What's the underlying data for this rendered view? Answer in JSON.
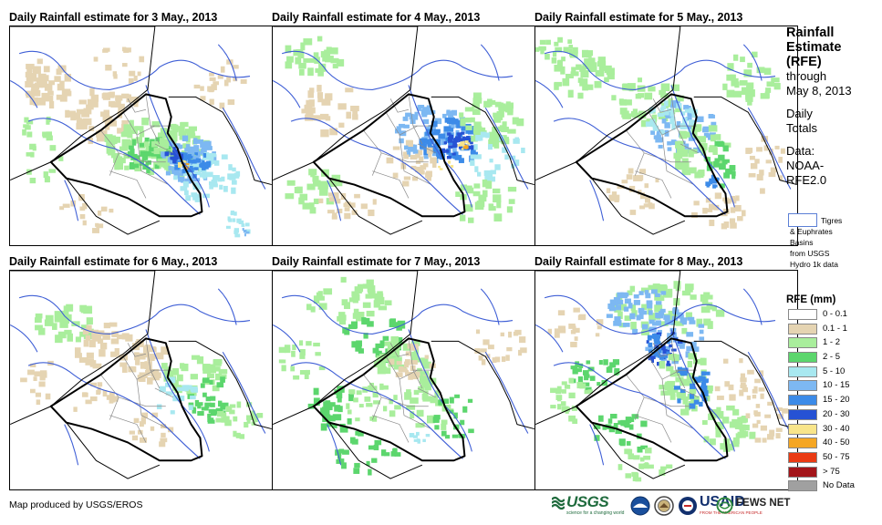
{
  "panels": [
    {
      "title": "Daily Rainfall estimate for 3 May., 2013",
      "pattern": "p3"
    },
    {
      "title": "Daily Rainfall estimate for 4 May., 2013",
      "pattern": "p4"
    },
    {
      "title": "Daily Rainfall estimate for 5 May., 2013",
      "pattern": "p5"
    },
    {
      "title": "Daily Rainfall estimate for 6 May., 2013",
      "pattern": "p6"
    },
    {
      "title": "Daily Rainfall estimate for 7 May., 2013",
      "pattern": "p7"
    },
    {
      "title": "Daily Rainfall estimate for 8 May., 2013",
      "pattern": "p8"
    }
  ],
  "side": {
    "line1": "Rainfall",
    "line2": "Estimate",
    "line3": "(RFE)",
    "line4": "through",
    "line5": "May 8, 2013",
    "line6": "Daily",
    "line7": "Totals",
    "line8": "Data:",
    "line9": "NOAA-",
    "line10": "RFE2.0"
  },
  "basin": {
    "line1": "Tigres",
    "line2": "& Euphrates",
    "line3": "Basins",
    "line4": "from USGS",
    "line5": "Hydro 1k data"
  },
  "legend": {
    "title": "RFE (mm)",
    "items": [
      {
        "label": "0 - 0.1",
        "color": "#ffffff"
      },
      {
        "label": "0.1 - 1",
        "color": "#e5d4b2"
      },
      {
        "label": "1 - 2",
        "color": "#a9ee9c"
      },
      {
        "label": "2 - 5",
        "color": "#5cd66d"
      },
      {
        "label": "5 - 10",
        "color": "#a8e8f0"
      },
      {
        "label": "10 - 15",
        "color": "#7db8f2"
      },
      {
        "label": "15 - 20",
        "color": "#3c8be8"
      },
      {
        "label": "20 - 30",
        "color": "#2652d4"
      },
      {
        "label": "30 - 40",
        "color": "#f8e58a"
      },
      {
        "label": "40 - 50",
        "color": "#f5a623"
      },
      {
        "label": "50 - 75",
        "color": "#ea3b14"
      },
      {
        "label": "> 75",
        "color": "#a3151a"
      },
      {
        "label": "No Data",
        "color": "#a0a0a0"
      }
    ]
  },
  "footer": {
    "credit": "Map produced by USGS/EROS",
    "logo_usgs": "USGS",
    "logo_usgs_tag": "science for a changing world",
    "logo_usaid": "USAID",
    "logo_usaid_tag": "FROM THE AMERICAN PEOPLE",
    "logo_fews": "FEWS NET"
  },
  "colors": {
    "border": "#000000",
    "rivers": "#3f5fd6",
    "admin": "#8a8a8a"
  }
}
